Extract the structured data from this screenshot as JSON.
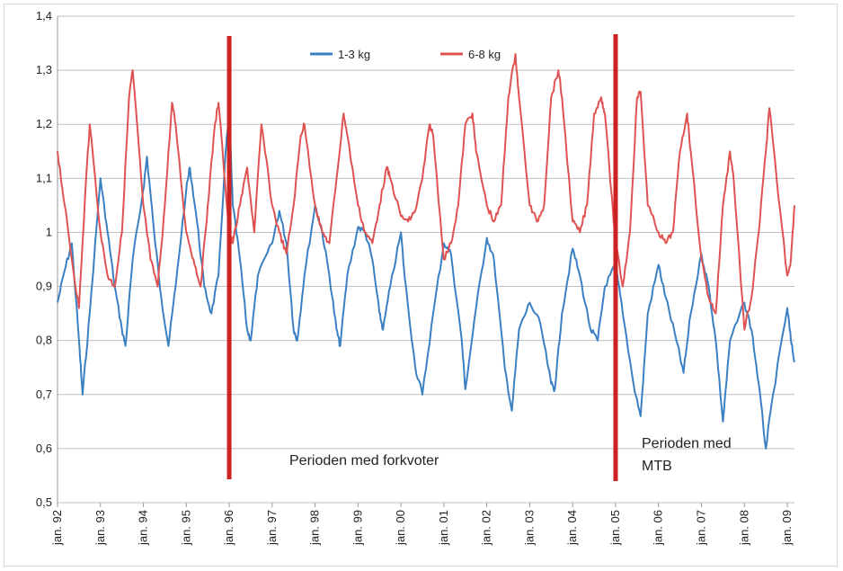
{
  "chart_data": {
    "type": "line",
    "title": "",
    "xlabel": "",
    "ylabel": "",
    "ylim": [
      0.5,
      1.4
    ],
    "xlim": [
      "1992-01",
      "2009-03"
    ],
    "grid": "horizontal",
    "y_ticks": [
      "0,5",
      "0,6",
      "0,7",
      "0,8",
      "0,9",
      "1",
      "1,1",
      "1,2",
      "1,3",
      "1,4"
    ],
    "y_tick_values": [
      0.5,
      0.6,
      0.7,
      0.8,
      0.9,
      1.0,
      1.1,
      1.2,
      1.3,
      1.4
    ],
    "x_ticks": [
      "jan. 92",
      "jan. 93",
      "jan. 94",
      "jan. 95",
      "jan. 96",
      "jan. 97",
      "jan. 98",
      "jan. 99",
      "jan. 00",
      "jan. 01",
      "jan. 02",
      "jan. 03",
      "jan. 04",
      "jan. 05",
      "jan. 06",
      "jan. 07",
      "jan. 08",
      "jan. 09"
    ],
    "x_tick_values": [
      "1992-01",
      "1993-01",
      "1994-01",
      "1995-01",
      "1996-01",
      "1997-01",
      "1998-01",
      "1999-01",
      "2000-01",
      "2001-01",
      "2002-01",
      "2003-01",
      "2004-01",
      "2005-01",
      "2006-01",
      "2007-01",
      "2008-01",
      "2009-01"
    ],
    "legend_position": "top-center",
    "series": [
      {
        "name": "1-3 kg",
        "color": "#3a80c2",
        "points": [
          [
            "1992-01",
            0.87
          ],
          [
            "1992-03",
            0.93
          ],
          [
            "1992-05",
            0.98
          ],
          [
            "1992-07",
            0.8
          ],
          [
            "1992-08",
            0.7
          ],
          [
            "1992-10",
            0.85
          ],
          [
            "1993-01",
            1.1
          ],
          [
            "1993-03",
            1.0
          ],
          [
            "1993-05",
            0.9
          ],
          [
            "1993-07",
            0.82
          ],
          [
            "1993-08",
            0.79
          ],
          [
            "1993-10",
            0.95
          ],
          [
            "1994-01",
            1.08
          ],
          [
            "1994-02",
            1.14
          ],
          [
            "1994-04",
            1.0
          ],
          [
            "1994-06",
            0.88
          ],
          [
            "1994-08",
            0.79
          ],
          [
            "1994-10",
            0.9
          ],
          [
            "1995-01",
            1.08
          ],
          [
            "1995-02",
            1.12
          ],
          [
            "1995-04",
            1.02
          ],
          [
            "1995-06",
            0.9
          ],
          [
            "1995-08",
            0.85
          ],
          [
            "1995-10",
            0.92
          ],
          [
            "1995-12",
            1.15
          ],
          [
            "1996-01",
            1.22
          ],
          [
            "1996-02",
            1.05
          ],
          [
            "1996-04",
            0.95
          ],
          [
            "1996-06",
            0.82
          ],
          [
            "1996-07",
            0.8
          ],
          [
            "1996-09",
            0.92
          ],
          [
            "1997-01",
            0.98
          ],
          [
            "1997-03",
            1.04
          ],
          [
            "1997-05",
            0.98
          ],
          [
            "1997-07",
            0.82
          ],
          [
            "1997-08",
            0.8
          ],
          [
            "1997-10",
            0.92
          ],
          [
            "1998-01",
            1.05
          ],
          [
            "1998-03",
            1.0
          ],
          [
            "1998-05",
            0.92
          ],
          [
            "1998-07",
            0.82
          ],
          [
            "1998-08",
            0.79
          ],
          [
            "1998-10",
            0.92
          ],
          [
            "1999-01",
            1.01
          ],
          [
            "1999-03",
            1.0
          ],
          [
            "1999-05",
            0.95
          ],
          [
            "1999-07",
            0.85
          ],
          [
            "1999-08",
            0.82
          ],
          [
            "1999-10",
            0.9
          ],
          [
            "2000-01",
            1.0
          ],
          [
            "2000-02",
            0.92
          ],
          [
            "2000-05",
            0.75
          ],
          [
            "2000-07",
            0.7
          ],
          [
            "2000-10",
            0.85
          ],
          [
            "2001-01",
            0.98
          ],
          [
            "2001-03",
            0.96
          ],
          [
            "2001-06",
            0.8
          ],
          [
            "2001-07",
            0.71
          ],
          [
            "2001-10",
            0.86
          ],
          [
            "2002-01",
            0.99
          ],
          [
            "2002-03",
            0.95
          ],
          [
            "2002-06",
            0.75
          ],
          [
            "2002-08",
            0.67
          ],
          [
            "2002-10",
            0.82
          ],
          [
            "2003-01",
            0.87
          ],
          [
            "2003-04",
            0.83
          ],
          [
            "2003-07",
            0.72
          ],
          [
            "2003-08",
            0.71
          ],
          [
            "2003-10",
            0.85
          ],
          [
            "2004-01",
            0.97
          ],
          [
            "2004-03",
            0.92
          ],
          [
            "2004-06",
            0.82
          ],
          [
            "2004-08",
            0.8
          ],
          [
            "2004-10",
            0.9
          ],
          [
            "2005-01",
            0.94
          ],
          [
            "2005-03",
            0.85
          ],
          [
            "2005-06",
            0.72
          ],
          [
            "2005-08",
            0.66
          ],
          [
            "2005-10",
            0.85
          ],
          [
            "2006-01",
            0.94
          ],
          [
            "2006-03",
            0.88
          ],
          [
            "2006-06",
            0.8
          ],
          [
            "2006-08",
            0.74
          ],
          [
            "2006-10",
            0.85
          ],
          [
            "2007-01",
            0.96
          ],
          [
            "2007-03",
            0.9
          ],
          [
            "2007-05",
            0.8
          ],
          [
            "2007-07",
            0.65
          ],
          [
            "2007-09",
            0.8
          ],
          [
            "2008-01",
            0.87
          ],
          [
            "2008-03",
            0.82
          ],
          [
            "2008-05",
            0.72
          ],
          [
            "2008-07",
            0.6
          ],
          [
            "2008-09",
            0.7
          ],
          [
            "2009-01",
            0.86
          ],
          [
            "2009-02",
            0.8
          ],
          [
            "2009-03",
            0.76
          ]
        ]
      },
      {
        "name": "6-8 kg",
        "color": "#e05252",
        "points": [
          [
            "1992-01",
            1.15
          ],
          [
            "1992-03",
            1.05
          ],
          [
            "1992-05",
            0.95
          ],
          [
            "1992-07",
            0.86
          ],
          [
            "1992-09",
            1.1
          ],
          [
            "1992-10",
            1.2
          ],
          [
            "1993-01",
            1.0
          ],
          [
            "1993-03",
            0.92
          ],
          [
            "1993-05",
            0.9
          ],
          [
            "1993-07",
            1.0
          ],
          [
            "1993-09",
            1.25
          ],
          [
            "1993-10",
            1.3
          ],
          [
            "1994-01",
            1.05
          ],
          [
            "1994-03",
            0.95
          ],
          [
            "1994-05",
            0.9
          ],
          [
            "1994-07",
            1.05
          ],
          [
            "1994-09",
            1.24
          ],
          [
            "1994-10",
            1.2
          ],
          [
            "1995-01",
            1.0
          ],
          [
            "1995-03",
            0.95
          ],
          [
            "1995-05",
            0.9
          ],
          [
            "1995-07",
            1.05
          ],
          [
            "1995-09",
            1.2
          ],
          [
            "1995-10",
            1.24
          ],
          [
            "1996-01",
            1.0
          ],
          [
            "1996-02",
            0.98
          ],
          [
            "1996-04",
            1.05
          ],
          [
            "1996-06",
            1.12
          ],
          [
            "1996-08",
            1.0
          ],
          [
            "1996-10",
            1.2
          ],
          [
            "1997-01",
            1.05
          ],
          [
            "1997-03",
            1.0
          ],
          [
            "1997-05",
            0.96
          ],
          [
            "1997-07",
            1.05
          ],
          [
            "1997-09",
            1.18
          ],
          [
            "1997-10",
            1.2
          ],
          [
            "1998-01",
            1.05
          ],
          [
            "1998-03",
            1.0
          ],
          [
            "1998-05",
            0.98
          ],
          [
            "1998-07",
            1.1
          ],
          [
            "1998-09",
            1.22
          ],
          [
            "1998-10",
            1.18
          ],
          [
            "1999-01",
            1.05
          ],
          [
            "1999-03",
            1.0
          ],
          [
            "1999-05",
            0.98
          ],
          [
            "1999-07",
            1.05
          ],
          [
            "1999-09",
            1.12
          ],
          [
            "1999-10",
            1.1
          ],
          [
            "2000-01",
            1.03
          ],
          [
            "2000-03",
            1.02
          ],
          [
            "2000-05",
            1.04
          ],
          [
            "2000-07",
            1.1
          ],
          [
            "2000-09",
            1.2
          ],
          [
            "2000-10",
            1.18
          ],
          [
            "2001-01",
            0.95
          ],
          [
            "2001-03",
            0.98
          ],
          [
            "2001-05",
            1.05
          ],
          [
            "2001-07",
            1.2
          ],
          [
            "2001-09",
            1.22
          ],
          [
            "2001-10",
            1.15
          ],
          [
            "2002-01",
            1.05
          ],
          [
            "2002-03",
            1.02
          ],
          [
            "2002-05",
            1.05
          ],
          [
            "2002-07",
            1.25
          ],
          [
            "2002-09",
            1.33
          ],
          [
            "2002-10",
            1.25
          ],
          [
            "2003-01",
            1.05
          ],
          [
            "2003-03",
            1.02
          ],
          [
            "2003-05",
            1.05
          ],
          [
            "2003-07",
            1.25
          ],
          [
            "2003-09",
            1.3
          ],
          [
            "2003-10",
            1.25
          ],
          [
            "2004-01",
            1.02
          ],
          [
            "2004-03",
            1.0
          ],
          [
            "2004-05",
            1.05
          ],
          [
            "2004-07",
            1.22
          ],
          [
            "2004-09",
            1.25
          ],
          [
            "2004-10",
            1.22
          ],
          [
            "2005-01",
            0.98
          ],
          [
            "2005-03",
            0.9
          ],
          [
            "2005-05",
            1.0
          ],
          [
            "2005-07",
            1.25
          ],
          [
            "2005-08",
            1.26
          ],
          [
            "2005-10",
            1.05
          ],
          [
            "2006-01",
            1.0
          ],
          [
            "2006-03",
            0.98
          ],
          [
            "2006-05",
            1.0
          ],
          [
            "2006-07",
            1.15
          ],
          [
            "2006-09",
            1.22
          ],
          [
            "2006-10",
            1.15
          ],
          [
            "2007-01",
            0.95
          ],
          [
            "2007-03",
            0.88
          ],
          [
            "2007-05",
            0.85
          ],
          [
            "2007-07",
            1.05
          ],
          [
            "2007-09",
            1.15
          ],
          [
            "2007-10",
            1.1
          ],
          [
            "2008-01",
            0.82
          ],
          [
            "2008-03",
            0.88
          ],
          [
            "2008-05",
            1.0
          ],
          [
            "2008-07",
            1.15
          ],
          [
            "2008-08",
            1.23
          ],
          [
            "2008-10",
            1.1
          ],
          [
            "2009-01",
            0.92
          ],
          [
            "2009-02",
            0.95
          ],
          [
            "2009-03",
            1.05
          ]
        ]
      }
    ],
    "markers": [
      {
        "x": "1996-01",
        "color": "#cc2222"
      },
      {
        "x": "2005-01",
        "color": "#cc2222"
      }
    ],
    "annotations": [
      {
        "text": "Perioden med forkvoter",
        "anchor": "1999-01"
      },
      {
        "text": "Perioden med",
        "anchor": "2005-02"
      },
      {
        "text": "MTB",
        "anchor": "2005-02"
      }
    ]
  }
}
